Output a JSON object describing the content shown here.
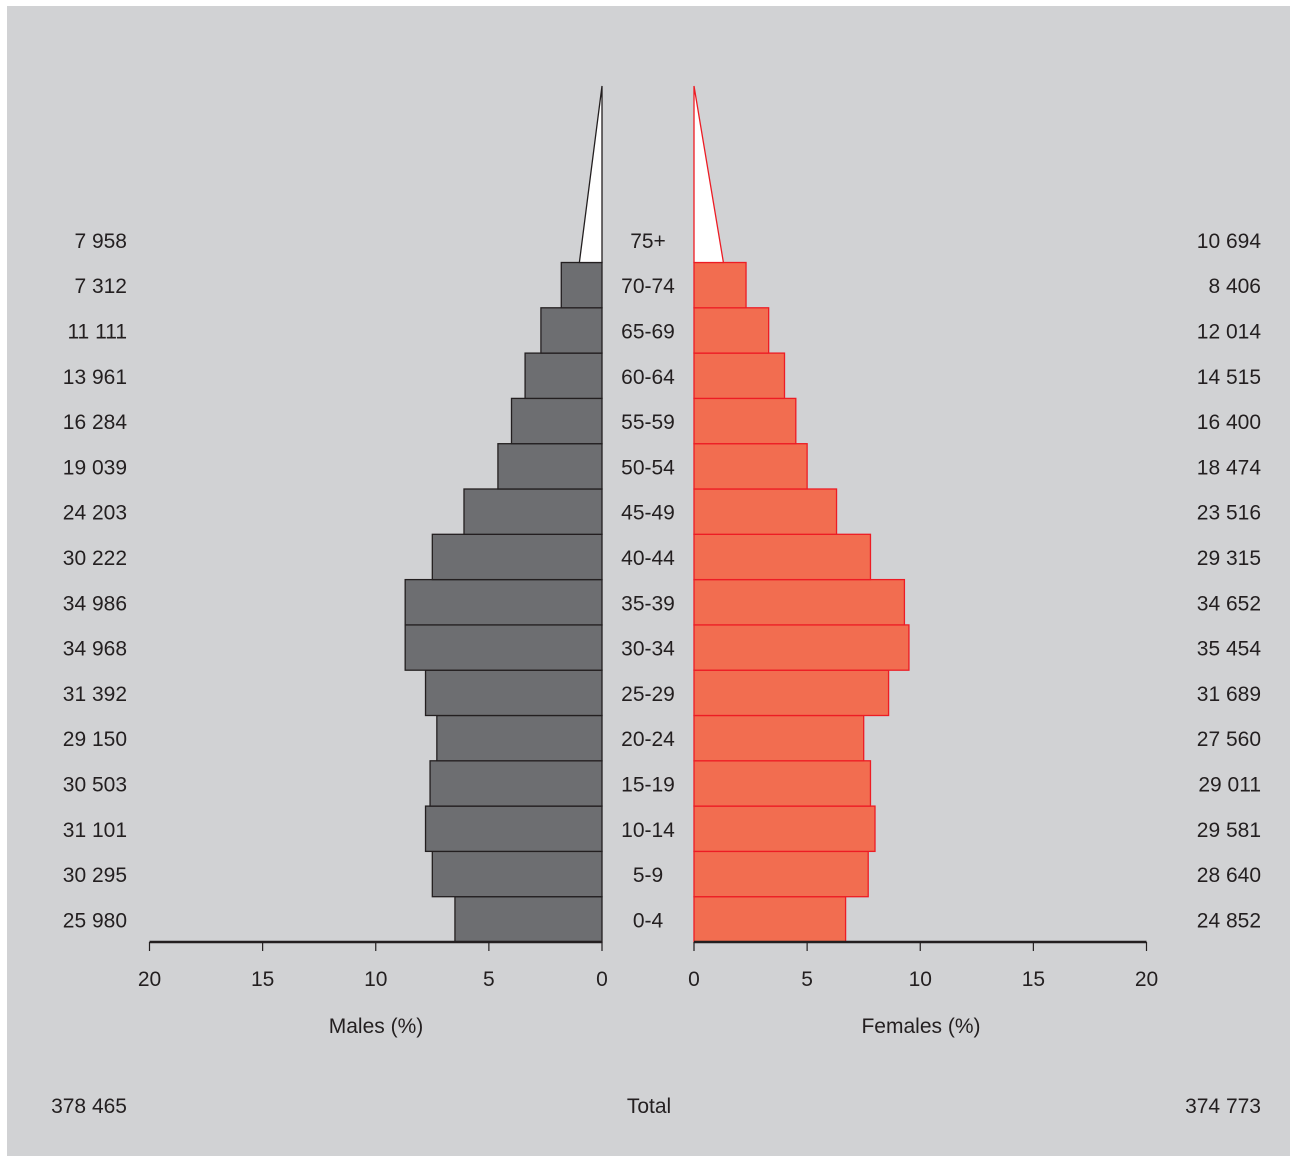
{
  "chart_data": {
    "type": "bar",
    "subtype": "population-pyramid",
    "categories": [
      "0-4",
      "5-9",
      "10-14",
      "15-19",
      "20-24",
      "25-29",
      "30-34",
      "35-39",
      "40-44",
      "45-49",
      "50-54",
      "55-59",
      "60-64",
      "65-69",
      "70-74",
      "75+"
    ],
    "series": [
      {
        "name": "Males (%)",
        "side": "left",
        "color": "#6d6e71",
        "values": [
          6.5,
          7.5,
          7.8,
          7.6,
          7.3,
          7.8,
          8.7,
          8.7,
          7.5,
          6.1,
          4.6,
          4.0,
          3.4,
          2.7,
          1.8,
          1.0
        ],
        "counts": [
          "25 980",
          "30 295",
          "31 101",
          "30 503",
          "29 150",
          "31 392",
          "34 968",
          "34 986",
          "30 222",
          "24 203",
          "19 039",
          "16 284",
          "13 961",
          "11 111",
          "7 312",
          "7 958"
        ],
        "total": "378 465"
      },
      {
        "name": "Females (%)",
        "side": "right",
        "color": "#f26d50",
        "values": [
          6.7,
          7.7,
          8.0,
          7.8,
          7.5,
          8.6,
          9.5,
          9.3,
          7.8,
          6.3,
          5.0,
          4.5,
          4.0,
          3.3,
          2.3,
          1.3
        ],
        "counts": [
          "24 852",
          "28 640",
          "29 581",
          "29 011",
          "27 560",
          "31 689",
          "35 454",
          "34 652",
          "29 315",
          "23 516",
          "18 474",
          "16 400",
          "14 515",
          "12 014",
          "8 406",
          "10 694"
        ],
        "total": "374 773"
      }
    ],
    "xlim": [
      0,
      20
    ],
    "xticks": [
      "20",
      "15",
      "10",
      "5",
      "0"
    ],
    "xticks_right": [
      "0",
      "5",
      "10",
      "15",
      "20"
    ],
    "xlabel_left": "Males (%)",
    "xlabel_right": "Females (%)",
    "total_label": "Total",
    "grid": false,
    "open_ended_group_shape": "triangle"
  },
  "colors": {
    "background": "#d1d2d4",
    "male_fill": "#6d6e71",
    "male_stroke": "#231f20",
    "female_fill": "#f26d50",
    "female_stroke": "#ed1c24",
    "open_group_fill": "#ffffff"
  }
}
